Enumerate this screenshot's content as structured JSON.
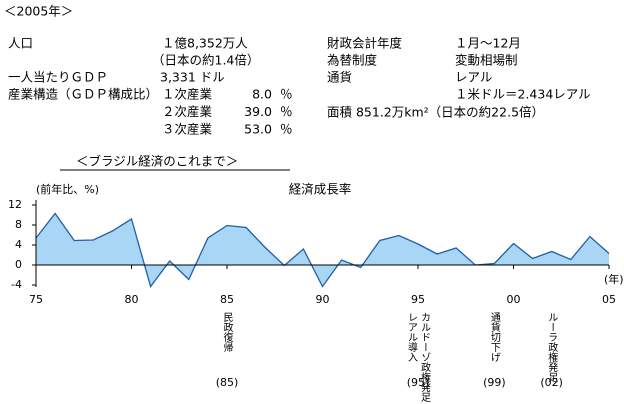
{
  "header": {
    "title": "＜2005年＞"
  },
  "info": {
    "population_label": "人口",
    "population": "１億8,352万人",
    "population_note": "（日本の約1.4倍）",
    "gdp_label": "一人当たりＧＤＰ",
    "gdp": "3,331 ドル",
    "industry_label": "産業構造（ＧＤＰ構成比）",
    "industries": [
      {
        "name": "１次産業",
        "share": "8.0",
        "unit": "％"
      },
      {
        "name": "２次産業",
        "share": "39.0",
        "unit": "％"
      },
      {
        "name": "３次産業",
        "share": "53.0",
        "unit": "％"
      }
    ],
    "fiscal_label": "財政会計年度",
    "fiscal": "１月～12月",
    "exchange_label": "為替制度",
    "exchange": "変動相場制",
    "currency_label": "通貨",
    "currency": "レアル",
    "rate": "１米ドル＝2.434レアル",
    "area": "面積 851.2万km²（日本の約22.5倍）"
  },
  "section_title": "＜ブラジル経済のこれまで＞",
  "chart_data": {
    "type": "area",
    "title": "経済成長率",
    "ylabel": "(前年比、%)",
    "xlabel": "(年)",
    "x": [
      1975,
      1976,
      1977,
      1978,
      1979,
      1980,
      1981,
      1982,
      1983,
      1984,
      1985,
      1986,
      1987,
      1988,
      1989,
      1990,
      1991,
      1992,
      1993,
      1994,
      1995,
      1996,
      1997,
      1998,
      1999,
      2000,
      2001,
      2002,
      2003,
      2004,
      2005
    ],
    "values": [
      5.4,
      10.3,
      4.9,
      5.0,
      6.8,
      9.2,
      -4.3,
      0.8,
      -2.9,
      5.4,
      7.9,
      7.5,
      3.5,
      -0.1,
      3.2,
      -4.3,
      1.0,
      -0.5,
      4.9,
      5.9,
      4.2,
      2.2,
      3.4,
      0.0,
      0.3,
      4.3,
      1.3,
      2.7,
      1.1,
      5.7,
      2.3
    ],
    "color": "#a9d6f5",
    "line_color": "#1f5fa8",
    "xlim": [
      1975,
      2005
    ],
    "xticks": [
      {
        "value": 1975,
        "label": "75"
      },
      {
        "value": 1980,
        "label": "80"
      },
      {
        "value": 1985,
        "label": "85"
      },
      {
        "value": 1990,
        "label": "90"
      },
      {
        "value": 1995,
        "label": "95"
      },
      {
        "value": 2000,
        "label": "00"
      },
      {
        "value": 2005,
        "label": "05"
      }
    ],
    "ylim": [
      -4,
      12
    ],
    "yticks": [
      12,
      8,
      4,
      0,
      -4
    ],
    "events": [
      {
        "year": {
          "value": 1985,
          "label": "(85)"
        },
        "lines": [
          "民政復帰"
        ]
      },
      {
        "year": {
          "value": 1995,
          "label": "(95)"
        },
        "lines": [
          "カルドーゾ政権発足",
          "レアル導入"
        ]
      },
      {
        "year": {
          "value": 1999,
          "label": "(99)"
        },
        "lines": [
          "通貨切下げ"
        ]
      },
      {
        "year": {
          "value": 2002,
          "label": "(02)"
        },
        "lines": [
          "ルーラ政権発足"
        ]
      }
    ]
  }
}
